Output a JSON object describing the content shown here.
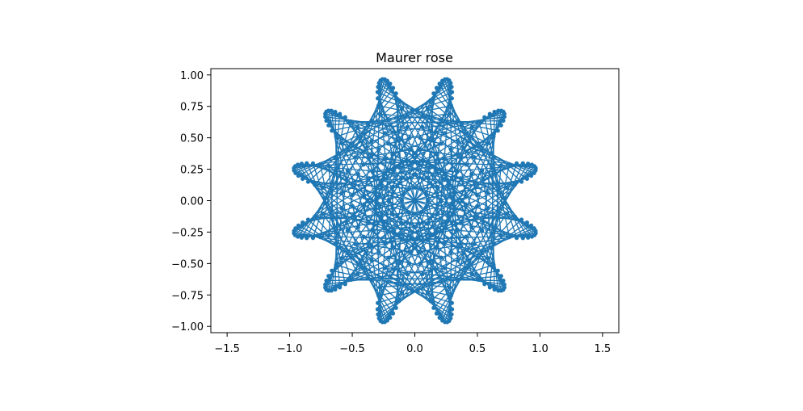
{
  "chart_data": {
    "type": "line",
    "title": "Maurer rose",
    "xlabel": "",
    "ylabel": "",
    "xlim": [
      -1.63,
      1.63
    ],
    "ylim": [
      -1.05,
      1.05
    ],
    "grid": false,
    "marker": "dot",
    "series": [
      {
        "color": "#1f77b4",
        "curve": {
          "n": 6,
          "d": 71,
          "steps": 361
        }
      }
    ],
    "xticks": [
      {
        "value": -1.5,
        "label": "−1.5"
      },
      {
        "value": -1.0,
        "label": "−1.0"
      },
      {
        "value": -0.5,
        "label": "−0.5"
      },
      {
        "value": 0.0,
        "label": "0.0"
      },
      {
        "value": 0.5,
        "label": "0.5"
      },
      {
        "value": 1.0,
        "label": "1.0"
      },
      {
        "value": 1.5,
        "label": "1.5"
      }
    ],
    "yticks": [
      {
        "value": 1.0,
        "label": "1.00"
      },
      {
        "value": 0.75,
        "label": "0.75"
      },
      {
        "value": 0.5,
        "label": "0.50"
      },
      {
        "value": 0.25,
        "label": "0.25"
      },
      {
        "value": 0.0,
        "label": "0.00"
      },
      {
        "value": -0.25,
        "label": "−0.25"
      },
      {
        "value": -0.5,
        "label": "−0.50"
      },
      {
        "value": -0.75,
        "label": "−0.75"
      },
      {
        "value": -1.0,
        "label": "−1.00"
      }
    ]
  }
}
